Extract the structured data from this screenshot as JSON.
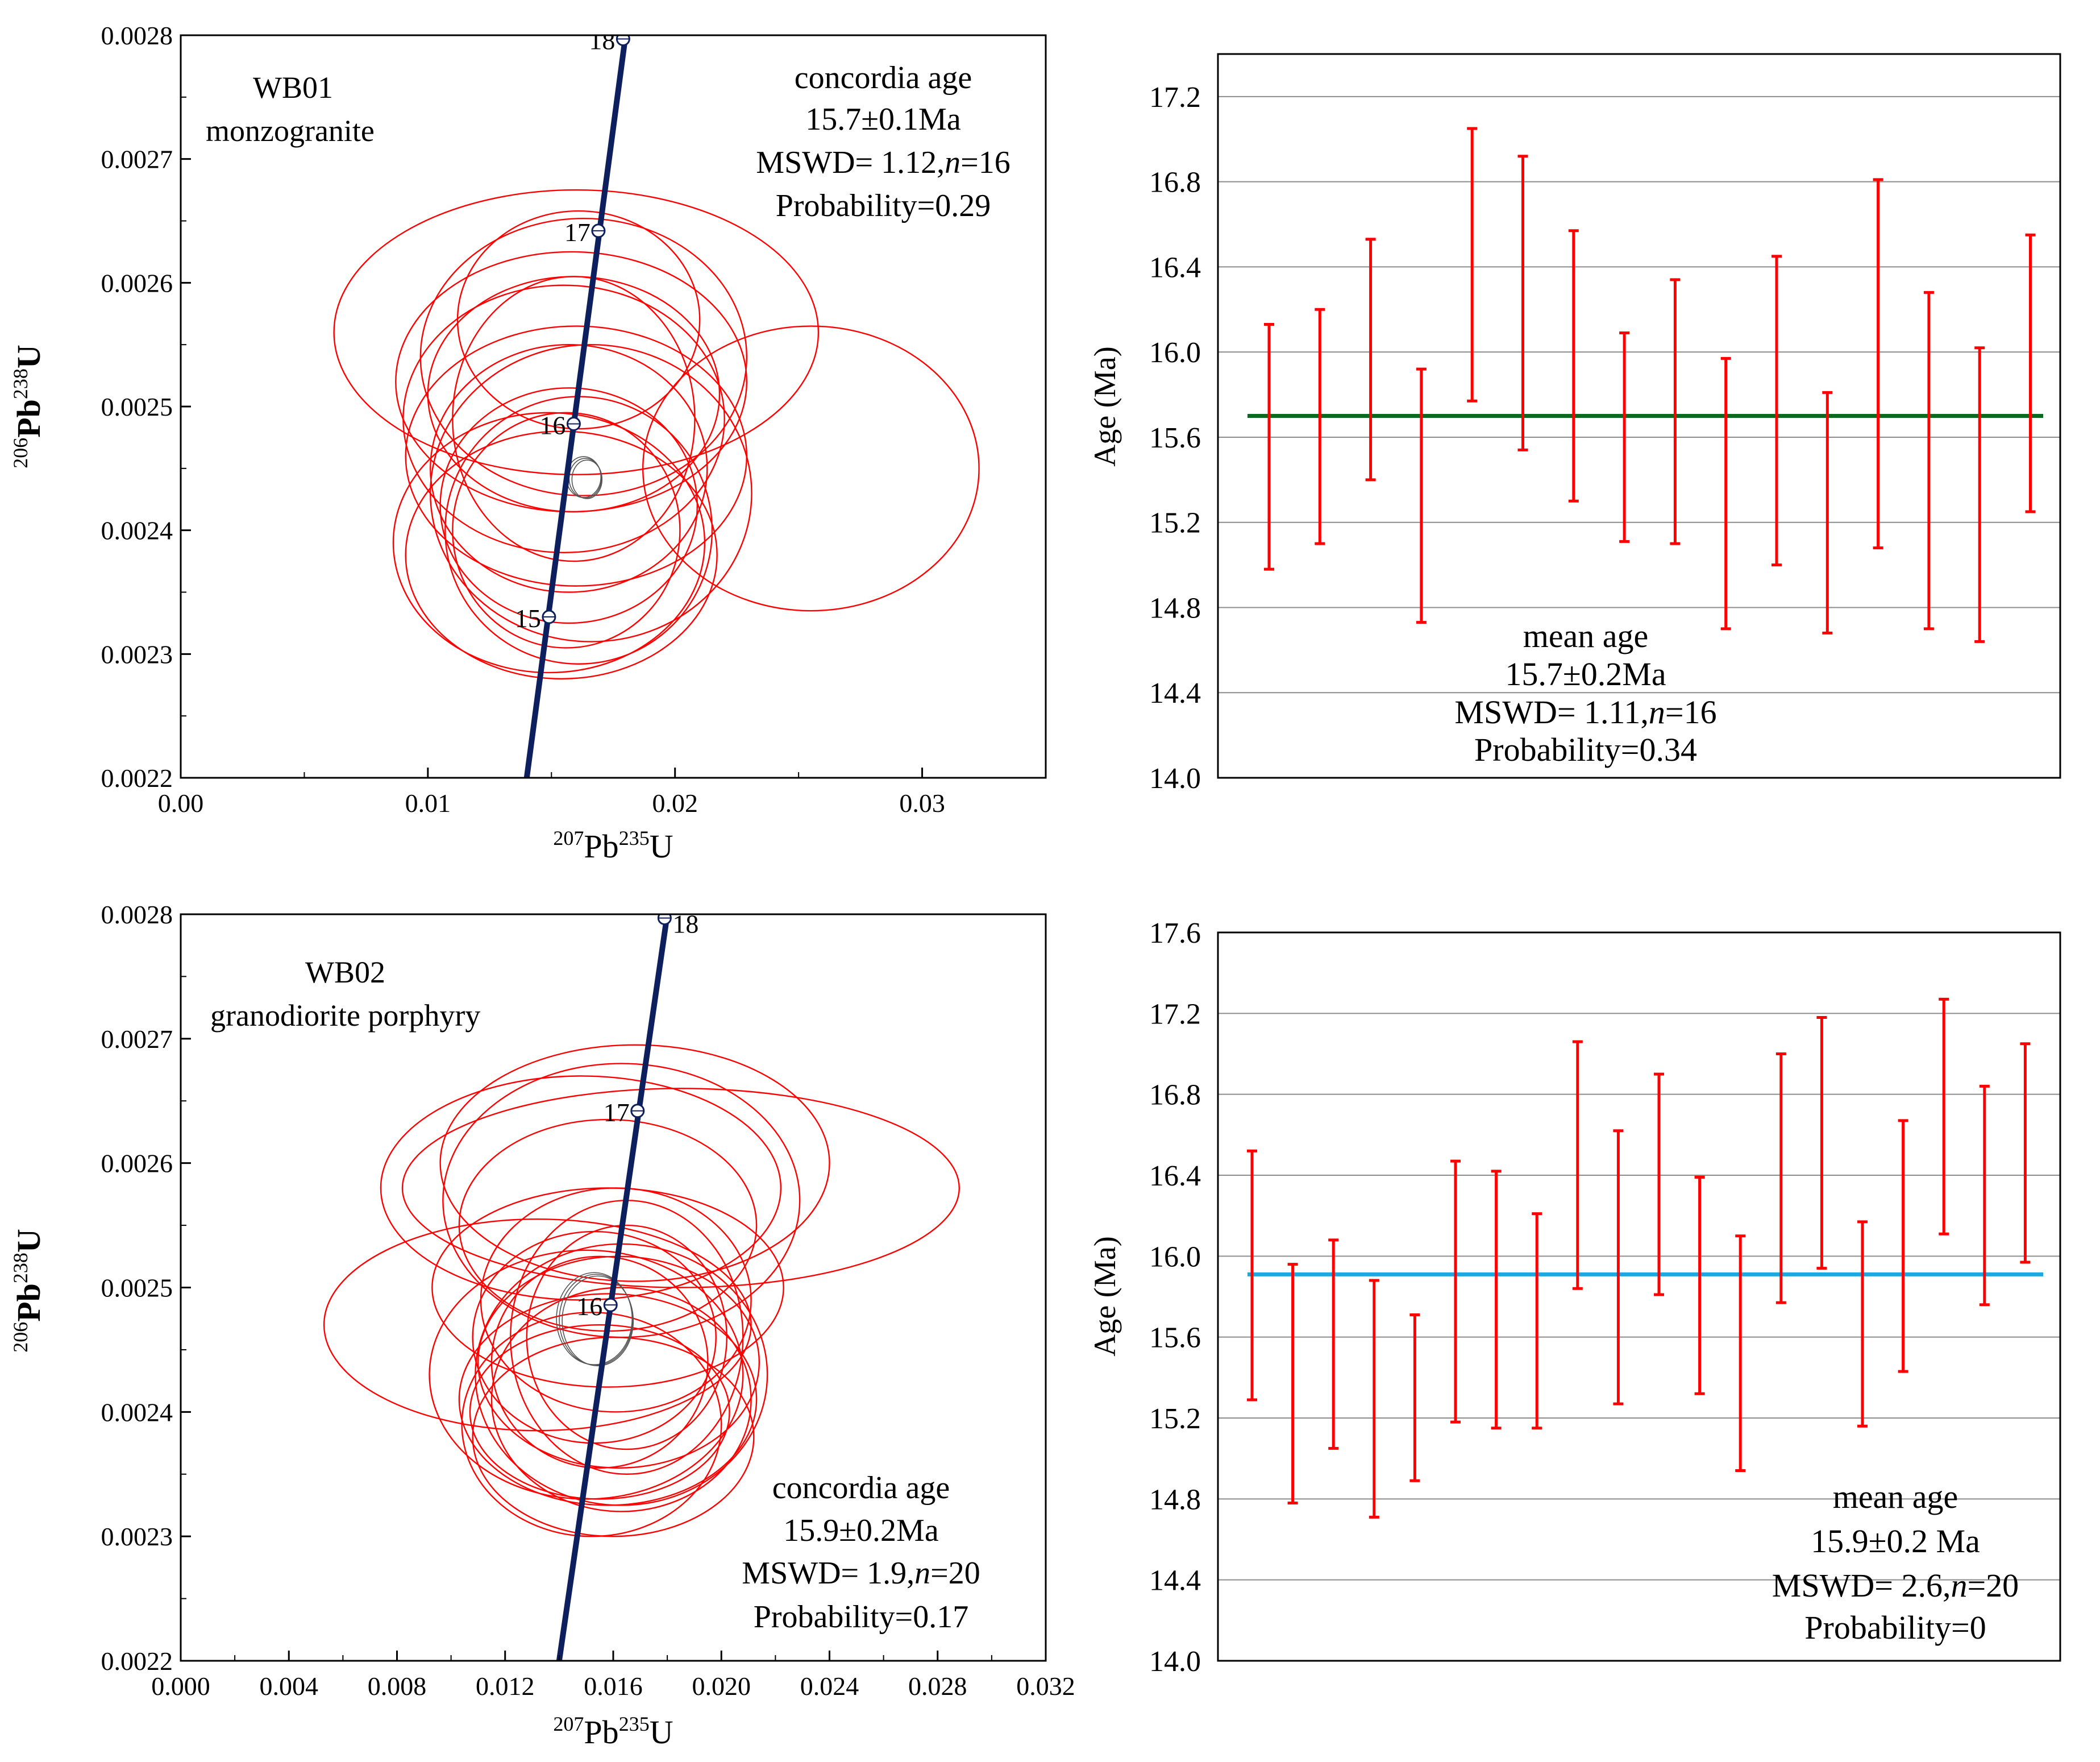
{
  "chart_data": [
    {
      "id": "wb01-concordia",
      "type": "scatter",
      "subtype": "concordia-diagram",
      "sample": "WB01",
      "rock_type": "monzogranite",
      "xlabel": {
        "pb": "Pb",
        "sup_num": "207",
        "sup_den": "235",
        "u": "U"
      },
      "ylabel": {
        "pb": "Pb",
        "sup_num": "206",
        "sup_den": "238",
        "u": "U"
      },
      "xlim": [
        0.0,
        0.035
      ],
      "ylim": [
        0.0022,
        0.0028
      ],
      "xticks": [
        0.0,
        0.01,
        0.02,
        0.03
      ],
      "xtick_labels": [
        "0.00",
        "0.01",
        "0.02",
        "0.03"
      ],
      "yticks": [
        0.0022,
        0.0023,
        0.0024,
        0.0025,
        0.0026,
        0.0027,
        0.0028
      ],
      "ytick_labels": [
        "0.0022",
        "0.0023",
        "0.0024",
        "0.0025",
        "0.0026",
        "0.0027",
        "0.0028"
      ],
      "concordia_points": [
        {
          "label": "15",
          "x": 0.0149,
          "y": 0.00233
        },
        {
          "label": "16",
          "x": 0.0159,
          "y": 0.002486
        },
        {
          "label": "17",
          "x": 0.0169,
          "y": 0.002642
        },
        {
          "label": "18",
          "x": 0.0179,
          "y": 0.002797
        }
      ],
      "concordia_line": [
        [
          0.014,
          0.0022
        ],
        [
          0.018,
          0.0028
        ]
      ],
      "ellipses": [
        {
          "cx": 0.016,
          "cy": 0.00256,
          "rx": 0.0098,
          "ry": 0.000115
        },
        {
          "cx": 0.0255,
          "cy": 0.00245,
          "rx": 0.0068,
          "ry": 0.000115
        },
        {
          "cx": 0.0158,
          "cy": 0.00252,
          "rx": 0.0071,
          "ry": 0.000105
        },
        {
          "cx": 0.0163,
          "cy": 0.00254,
          "rx": 0.0066,
          "ry": 0.000112
        },
        {
          "cx": 0.0161,
          "cy": 0.00257,
          "rx": 0.0049,
          "ry": 8.8e-05
        },
        {
          "cx": 0.0159,
          "cy": 0.00251,
          "rx": 0.0059,
          "ry": 9.5e-05
        },
        {
          "cx": 0.0155,
          "cy": 0.00249,
          "rx": 0.0065,
          "ry": 0.000108
        },
        {
          "cx": 0.0159,
          "cy": 0.00249,
          "rx": 0.0049,
          "ry": 0.000115
        },
        {
          "cx": 0.016,
          "cy": 0.00246,
          "rx": 0.0069,
          "ry": 0.000105
        },
        {
          "cx": 0.0157,
          "cy": 0.00245,
          "rx": 0.0056,
          "ry": 0.0001
        },
        {
          "cx": 0.0166,
          "cy": 0.00243,
          "rx": 0.0065,
          "ry": 0.00012
        },
        {
          "cx": 0.0157,
          "cy": 0.00242,
          "rx": 0.0052,
          "ry": 9.5e-05
        },
        {
          "cx": 0.0154,
          "cy": 0.00238,
          "rx": 0.0063,
          "ry": 0.0001
        },
        {
          "cx": 0.0161,
          "cy": 0.0024,
          "rx": 0.0054,
          "ry": 0.000108
        },
        {
          "cx": 0.0149,
          "cy": 0.00239,
          "rx": 0.0063,
          "ry": 0.000105
        },
        {
          "cx": 0.0156,
          "cy": 0.0024,
          "rx": 0.0046,
          "ry": 9.5e-05
        }
      ],
      "mean_ellipse": {
        "cx": 0.0163,
        "cy": 0.002443,
        "rx": 0.0007,
        "ry": 1.65e-05
      },
      "annotation": {
        "title": "concordia age",
        "age": "15.7±0.1Ma",
        "mswd_pre": "MSWD= 1.12,",
        "n_italic": "n",
        "mswd_post": "=16",
        "probability": "Probability=0.29"
      },
      "colors": {
        "ellipse": "#ff0000",
        "concordia": "#0d1f5c",
        "mean": "#555555"
      }
    },
    {
      "id": "wb01-mean-age",
      "type": "bar",
      "subtype": "error-bar-weighted-mean",
      "ylabel": "Age (Ma)",
      "ylim": [
        14.0,
        17.4
      ],
      "yticks": [
        14.0,
        14.4,
        14.8,
        15.2,
        15.6,
        16.0,
        16.4,
        16.8,
        17.2
      ],
      "ytick_labels": [
        "14.0",
        "14.4",
        "14.8",
        "15.2",
        "15.6",
        "16.0",
        "16.4",
        "16.8",
        "17.2"
      ],
      "grid": true,
      "intervals": [
        [
          14.98,
          16.13
        ],
        [
          15.1,
          16.2
        ],
        [
          15.4,
          16.53
        ],
        [
          14.73,
          15.92
        ],
        [
          15.77,
          17.05
        ],
        [
          15.54,
          16.92
        ],
        [
          15.3,
          16.57
        ],
        [
          15.11,
          16.09
        ],
        [
          15.1,
          16.34
        ],
        [
          14.7,
          15.97
        ],
        [
          15.0,
          16.45
        ],
        [
          14.68,
          15.81
        ],
        [
          15.08,
          16.81
        ],
        [
          14.7,
          16.28
        ],
        [
          14.64,
          16.02
        ],
        [
          15.25,
          16.55
        ]
      ],
      "mean_value": 15.7,
      "annotation": {
        "title": "mean age",
        "age": "15.7±0.2Ma",
        "mswd_pre": "MSWD= 1.11,",
        "n_italic": "n",
        "mswd_post": "=16",
        "probability": "Probability=0.34"
      },
      "colors": {
        "bars": "#ff0000",
        "mean": "#0a6b1e"
      }
    },
    {
      "id": "wb02-concordia",
      "type": "scatter",
      "subtype": "concordia-diagram",
      "sample": "WB02",
      "rock_type": "granodiorite porphyry",
      "xlabel": {
        "pb": "Pb",
        "sup_num": "207",
        "sup_den": "235",
        "u": "U"
      },
      "ylabel": {
        "pb": "Pb",
        "sup_num": "206",
        "sup_den": "238",
        "u": "U"
      },
      "xlim": [
        0.0,
        0.032
      ],
      "ylim": [
        0.0022,
        0.0028
      ],
      "xticks": [
        0.0,
        0.004,
        0.008,
        0.012,
        0.016,
        0.02,
        0.024,
        0.028,
        0.032
      ],
      "xtick_labels": [
        "0.000",
        "0.004",
        "0.008",
        "0.012",
        "0.016",
        "0.020",
        "0.024",
        "0.028",
        "0.032"
      ],
      "yticks": [
        0.0022,
        0.0023,
        0.0024,
        0.0025,
        0.0026,
        0.0027,
        0.0028
      ],
      "ytick_labels": [
        "0.0022",
        "0.0023",
        "0.0024",
        "0.0025",
        "0.0026",
        "0.0027",
        "0.0028"
      ],
      "concordia_points": [
        {
          "label": "16",
          "x": 0.0159,
          "y": 0.002486
        },
        {
          "label": "17",
          "x": 0.0169,
          "y": 0.002642
        },
        {
          "label": "18",
          "x": 0.0179,
          "y": 0.002797
        }
      ],
      "concordia_line": [
        [
          0.014,
          0.0022
        ],
        [
          0.018,
          0.0028
        ]
      ],
      "ellipses": [
        {
          "cx": 0.0168,
          "cy": 0.0026,
          "rx": 0.0072,
          "ry": 9.5e-05
        },
        {
          "cx": 0.0185,
          "cy": 0.00258,
          "rx": 0.0103,
          "ry": 8e-05
        },
        {
          "cx": 0.0148,
          "cy": 0.00258,
          "rx": 0.0074,
          "ry": 9e-05
        },
        {
          "cx": 0.0163,
          "cy": 0.00257,
          "rx": 0.0066,
          "ry": 0.00011
        },
        {
          "cx": 0.0158,
          "cy": 0.00255,
          "rx": 0.0055,
          "ry": 8.5e-05
        },
        {
          "cx": 0.0132,
          "cy": 0.00247,
          "rx": 0.0079,
          "ry": 8.5e-05
        },
        {
          "cx": 0.0161,
          "cy": 0.00249,
          "rx": 0.005,
          "ry": 9e-05
        },
        {
          "cx": 0.0153,
          "cy": 0.00246,
          "rx": 0.0045,
          "ry": 8.5e-05
        },
        {
          "cx": 0.0162,
          "cy": 0.00244,
          "rx": 0.0052,
          "ry": 8.5e-05
        },
        {
          "cx": 0.0158,
          "cy": 0.00241,
          "rx": 0.0055,
          "ry": 8.5e-05
        },
        {
          "cx": 0.016,
          "cy": 0.00238,
          "rx": 0.0052,
          "ry": 8e-05
        },
        {
          "cx": 0.0155,
          "cy": 0.0024,
          "rx": 0.0048,
          "ry": 7e-05
        },
        {
          "cx": 0.0163,
          "cy": 0.00243,
          "rx": 0.0054,
          "ry": 0.000105
        },
        {
          "cx": 0.0163,
          "cy": 0.00241,
          "rx": 0.0048,
          "ry": 9e-05
        },
        {
          "cx": 0.0165,
          "cy": 0.00246,
          "rx": 0.0043,
          "ry": 0.00011
        },
        {
          "cx": 0.0152,
          "cy": 0.00239,
          "rx": 0.0048,
          "ry": 9e-05
        },
        {
          "cx": 0.0155,
          "cy": 0.00244,
          "rx": 0.004,
          "ry": 8.5e-05
        },
        {
          "cx": 0.0158,
          "cy": 0.0025,
          "rx": 0.0065,
          "ry": 8e-05
        },
        {
          "cx": 0.015,
          "cy": 0.00243,
          "rx": 0.0058,
          "ry": 0.0001
        },
        {
          "cx": 0.0165,
          "cy": 0.00246,
          "rx": 0.0037,
          "ry": 9e-05
        }
      ],
      "mean_ellipse": {
        "cx": 0.0153,
        "cy": 0.002475,
        "rx": 0.0014,
        "ry": 3.7e-05
      },
      "annotation": {
        "title": "concordia  age",
        "age": "15.9±0.2Ma",
        "mswd_pre": "MSWD= 1.9,",
        "n_italic": "n",
        "mswd_post": "=20",
        "probability": "Probability=0.17"
      },
      "colors": {
        "ellipse": "#ff0000",
        "concordia": "#0d1f5c",
        "mean": "#555555"
      }
    },
    {
      "id": "wb02-mean-age",
      "type": "bar",
      "subtype": "error-bar-weighted-mean",
      "ylabel": "Age (Ma)",
      "ylim": [
        14.0,
        17.6
      ],
      "yticks": [
        14.0,
        14.4,
        14.8,
        15.2,
        15.6,
        16.0,
        16.4,
        16.8,
        17.2,
        17.6
      ],
      "ytick_labels": [
        "14.0",
        "14.4",
        "14.8",
        "15.2",
        "15.6",
        "16.0",
        "16.4",
        "16.8",
        "17.2",
        "17.6"
      ],
      "grid": true,
      "intervals": [
        [
          15.29,
          16.52
        ],
        [
          14.78,
          15.96
        ],
        [
          15.05,
          16.08
        ],
        [
          14.71,
          15.88
        ],
        [
          14.89,
          15.71
        ],
        [
          15.18,
          16.47
        ],
        [
          15.15,
          16.42
        ],
        [
          15.15,
          16.21
        ],
        [
          15.84,
          17.06
        ],
        [
          15.27,
          16.62
        ],
        [
          15.81,
          16.9
        ],
        [
          15.32,
          16.39
        ],
        [
          14.94,
          16.1
        ],
        [
          15.77,
          17.0
        ],
        [
          15.94,
          17.18
        ],
        [
          15.16,
          16.17
        ],
        [
          15.43,
          16.67
        ],
        [
          16.11,
          17.27
        ],
        [
          15.76,
          16.84
        ],
        [
          15.97,
          17.05
        ]
      ],
      "mean_value": 15.91,
      "annotation": {
        "title": "mean age",
        "age": "15.9±0.2 Ma",
        "mswd_pre": "MSWD= 2.6,",
        "n_italic": "n",
        "mswd_post": "=20",
        "probability": "Probability=0"
      },
      "colors": {
        "bars": "#ff0000",
        "mean": "#1ca8e0"
      }
    }
  ]
}
